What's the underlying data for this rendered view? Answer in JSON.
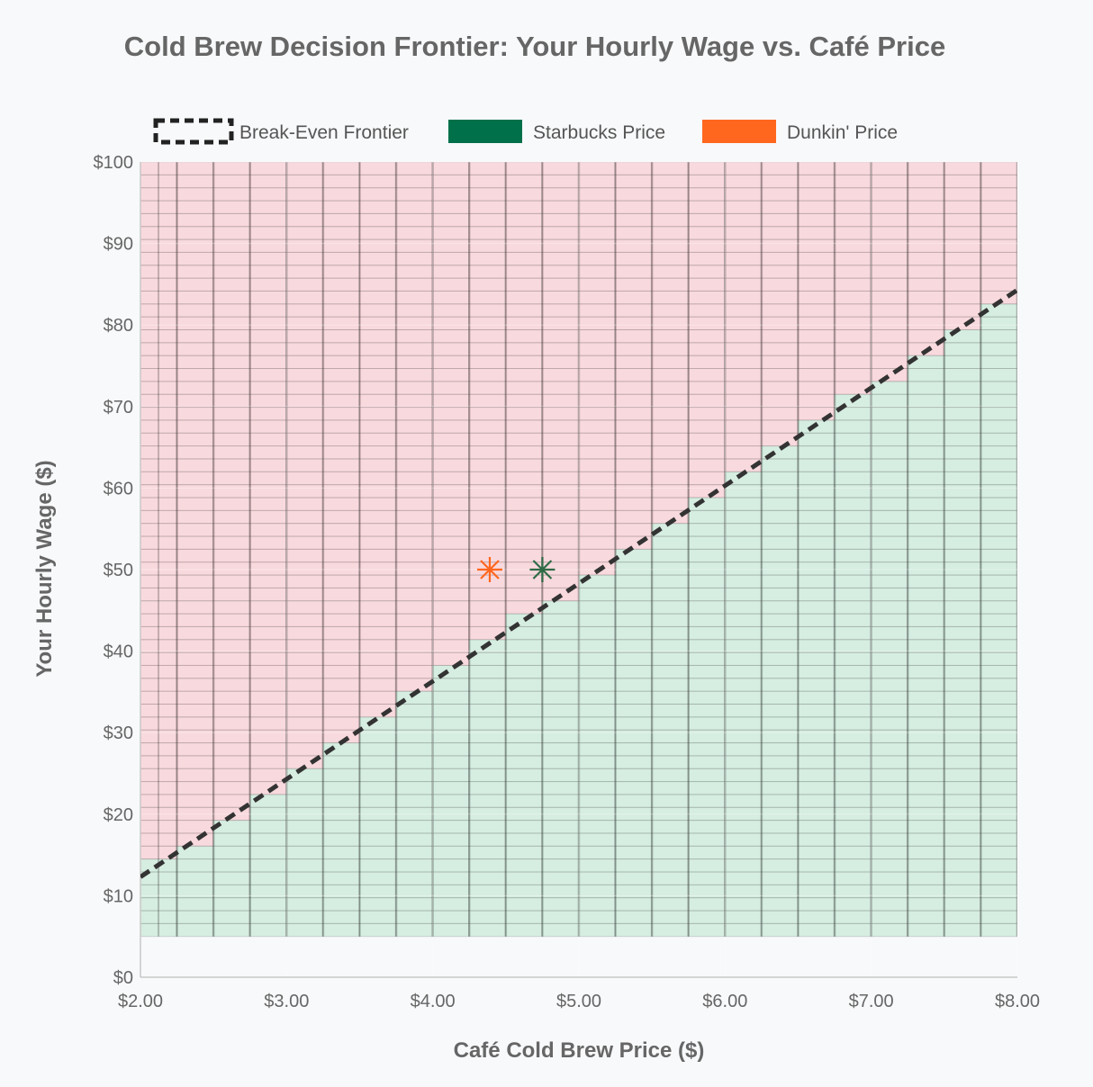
{
  "chart_data": {
    "type": "scatter",
    "title": "Cold Brew Decision Frontier: Your Hourly Wage vs. Café Price",
    "xlabel": "Café Cold Brew Price ($)",
    "ylabel": "Your Hourly Wage ($)",
    "xlim": [
      2.0,
      8.0
    ],
    "ylim": [
      0,
      100
    ],
    "x_ticks": [
      2,
      3,
      4,
      5,
      6,
      7,
      8
    ],
    "x_tick_labels": [
      "$2.00",
      "$3.00",
      "$4.00",
      "$5.00",
      "$6.00",
      "$7.00",
      "$8.00"
    ],
    "y_ticks": [
      0,
      10,
      20,
      30,
      40,
      50,
      60,
      70,
      80,
      90,
      100
    ],
    "y_tick_labels": [
      "$0",
      "$10",
      "$20",
      "$30",
      "$40",
      "$50",
      "$60",
      "$70",
      "$80",
      "$90",
      "$100"
    ],
    "grid": true,
    "legend_position": "top",
    "legend": [
      {
        "label": "Break-Even Frontier",
        "style": "dashed-line",
        "color": "#222222"
      },
      {
        "label": "Starbucks Price",
        "style": "swatch",
        "color": "#00704a"
      },
      {
        "label": "Dunkin' Price",
        "style": "swatch",
        "color": "#ff671f"
      }
    ],
    "heatmap": {
      "x_range": [
        2.0,
        8.0
      ],
      "y_range": [
        5,
        100
      ],
      "below_color": "#9fd9b8",
      "above_color": "#f7a6ad"
    },
    "frontier": {
      "x": [
        2.0,
        8.0
      ],
      "y": [
        12.3,
        84.3
      ],
      "color": "#333333"
    },
    "series": [
      {
        "name": "Starbucks Price",
        "x": [
          4.75
        ],
        "y": [
          50
        ],
        "color": "#2f6b46",
        "marker": "asterisk"
      },
      {
        "name": "Dunkin' Price",
        "x": [
          4.39
        ],
        "y": [
          50
        ],
        "color": "#ff671f",
        "marker": "asterisk"
      }
    ]
  }
}
